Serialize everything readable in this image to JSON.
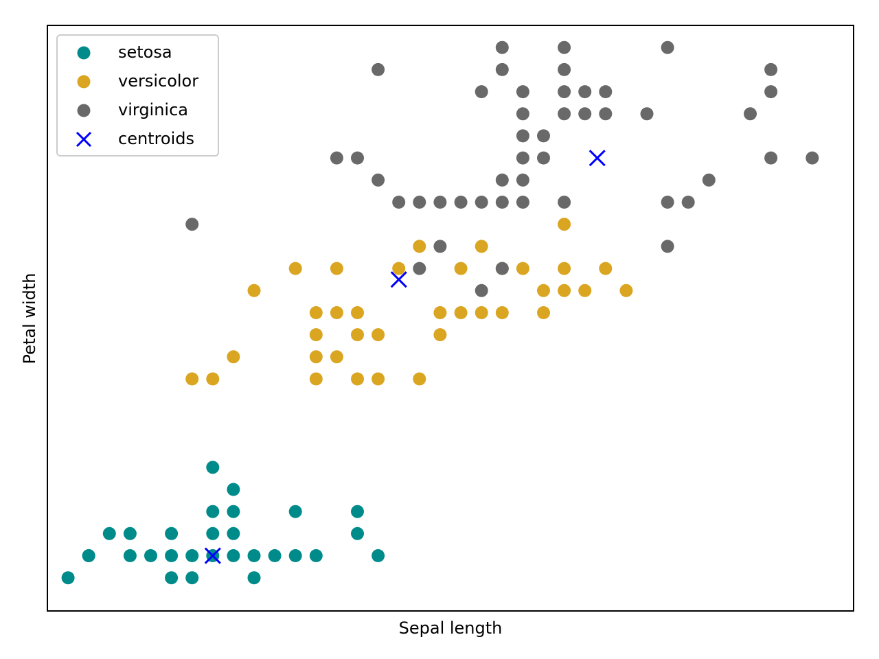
{
  "chart_data": {
    "type": "scatter",
    "title": "",
    "xlabel": "Sepal length",
    "ylabel": "Petal width",
    "xlim": [
      4.2,
      8.1
    ],
    "ylim": [
      -0.05,
      2.6
    ],
    "xticks_visible": false,
    "yticks_visible": false,
    "grid": false,
    "legend_position": "top-left",
    "series": [
      {
        "name": "setosa",
        "color": "#008b8b",
        "marker": "circle",
        "points": [
          [
            4.3,
            0.1
          ],
          [
            4.4,
            0.2
          ],
          [
            4.4,
            0.2
          ],
          [
            4.5,
            0.3
          ],
          [
            4.6,
            0.2
          ],
          [
            4.6,
            0.3
          ],
          [
            4.7,
            0.2
          ],
          [
            4.8,
            0.1
          ],
          [
            4.8,
            0.2
          ],
          [
            4.8,
            0.3
          ],
          [
            4.9,
            0.1
          ],
          [
            4.9,
            0.2
          ],
          [
            5.0,
            0.2
          ],
          [
            5.0,
            0.3
          ],
          [
            5.0,
            0.4
          ],
          [
            5.0,
            0.6
          ],
          [
            5.1,
            0.2
          ],
          [
            5.1,
            0.3
          ],
          [
            5.1,
            0.4
          ],
          [
            5.1,
            0.5
          ],
          [
            5.2,
            0.1
          ],
          [
            5.2,
            0.2
          ],
          [
            5.3,
            0.2
          ],
          [
            5.4,
            0.2
          ],
          [
            5.4,
            0.4
          ],
          [
            5.5,
            0.2
          ],
          [
            5.7,
            0.3
          ],
          [
            5.7,
            0.4
          ],
          [
            5.8,
            0.2
          ]
        ]
      },
      {
        "name": "versicolor",
        "color": "#daa520",
        "marker": "circle",
        "points": [
          [
            4.9,
            1.0
          ],
          [
            5.0,
            1.0
          ],
          [
            5.1,
            1.1
          ],
          [
            5.2,
            1.4
          ],
          [
            5.4,
            1.5
          ],
          [
            5.5,
            1.0
          ],
          [
            5.5,
            1.1
          ],
          [
            5.5,
            1.2
          ],
          [
            5.5,
            1.3
          ],
          [
            5.6,
            1.1
          ],
          [
            5.6,
            1.3
          ],
          [
            5.6,
            1.5
          ],
          [
            5.7,
            1.0
          ],
          [
            5.7,
            1.2
          ],
          [
            5.7,
            1.3
          ],
          [
            5.8,
            1.0
          ],
          [
            5.8,
            1.2
          ],
          [
            5.9,
            1.5
          ],
          [
            6.0,
            1.0
          ],
          [
            6.0,
            1.6
          ],
          [
            6.1,
            1.2
          ],
          [
            6.1,
            1.3
          ],
          [
            6.2,
            1.3
          ],
          [
            6.2,
            1.5
          ],
          [
            6.3,
            1.3
          ],
          [
            6.3,
            1.6
          ],
          [
            6.4,
            1.3
          ],
          [
            6.4,
            1.5
          ],
          [
            6.5,
            1.5
          ],
          [
            6.6,
            1.3
          ],
          [
            6.6,
            1.4
          ],
          [
            6.7,
            1.4
          ],
          [
            6.7,
            1.5
          ],
          [
            6.7,
            1.7
          ],
          [
            6.8,
            1.4
          ],
          [
            6.9,
            1.5
          ],
          [
            7.0,
            1.4
          ]
        ]
      },
      {
        "name": "virginica",
        "color": "#696969",
        "marker": "circle",
        "points": [
          [
            4.9,
            1.7
          ],
          [
            5.6,
            2.0
          ],
          [
            5.7,
            2.0
          ],
          [
            5.8,
            1.9
          ],
          [
            5.8,
            2.4
          ],
          [
            5.9,
            1.8
          ],
          [
            6.0,
            1.5
          ],
          [
            6.0,
            1.8
          ],
          [
            6.1,
            1.6
          ],
          [
            6.1,
            1.8
          ],
          [
            6.2,
            1.8
          ],
          [
            6.3,
            1.4
          ],
          [
            6.3,
            1.8
          ],
          [
            6.3,
            2.3
          ],
          [
            6.4,
            1.5
          ],
          [
            6.4,
            1.8
          ],
          [
            6.4,
            1.9
          ],
          [
            6.4,
            2.4
          ],
          [
            6.4,
            2.5
          ],
          [
            6.5,
            1.8
          ],
          [
            6.5,
            1.9
          ],
          [
            6.5,
            2.0
          ],
          [
            6.5,
            2.1
          ],
          [
            6.5,
            2.2
          ],
          [
            6.5,
            2.3
          ],
          [
            6.6,
            2.0
          ],
          [
            6.6,
            2.1
          ],
          [
            6.7,
            1.8
          ],
          [
            6.7,
            2.2
          ],
          [
            6.7,
            2.3
          ],
          [
            6.7,
            2.4
          ],
          [
            6.7,
            2.5
          ],
          [
            6.8,
            2.2
          ],
          [
            6.8,
            2.3
          ],
          [
            6.9,
            2.2
          ],
          [
            6.9,
            2.3
          ],
          [
            7.1,
            2.2
          ],
          [
            7.2,
            1.6
          ],
          [
            7.2,
            1.8
          ],
          [
            7.2,
            2.5
          ],
          [
            7.3,
            1.8
          ],
          [
            7.4,
            1.9
          ],
          [
            7.6,
            2.2
          ],
          [
            7.7,
            2.0
          ],
          [
            7.7,
            2.3
          ],
          [
            7.7,
            2.4
          ],
          [
            7.9,
            2.0
          ]
        ]
      },
      {
        "name": "centroids",
        "color": "#0000ff",
        "marker": "x",
        "points": [
          [
            5.0,
            0.2
          ],
          [
            5.9,
            1.45
          ],
          [
            6.86,
            2.0
          ]
        ]
      }
    ]
  }
}
